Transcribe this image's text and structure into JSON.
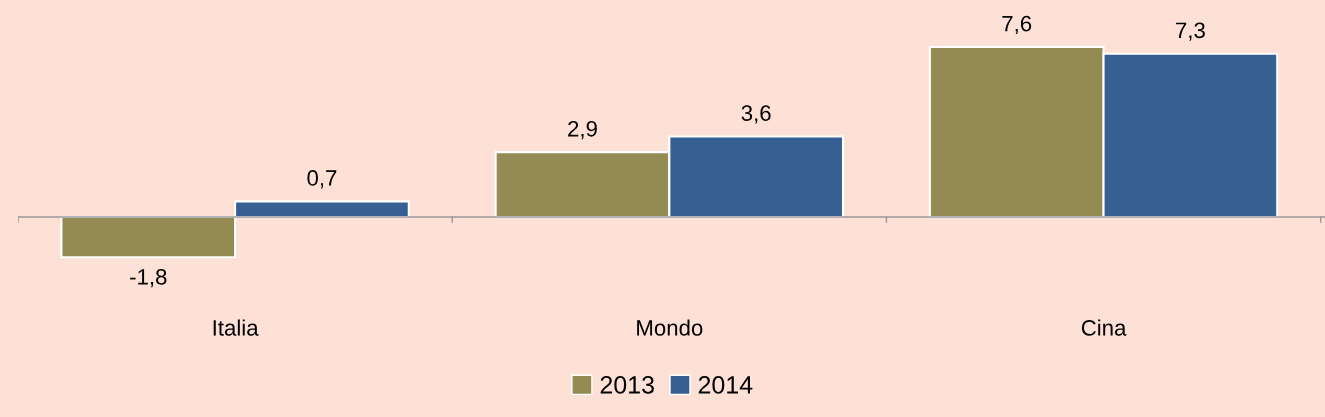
{
  "chart_data": {
    "type": "bar",
    "categories": [
      "Italia",
      "Mondo",
      "Cina"
    ],
    "series": [
      {
        "name": "2013",
        "color": "#948a54",
        "values": [
          -1.8,
          2.9,
          7.6
        ],
        "value_labels": [
          "-1,8",
          "2,9",
          "7,6"
        ]
      },
      {
        "name": "2014",
        "color": "#376092",
        "values": [
          0.7,
          3.6,
          7.3
        ],
        "value_labels": [
          "0,7",
          "3,6",
          "7,3"
        ]
      }
    ],
    "legend": "bottom",
    "grid": false
  }
}
